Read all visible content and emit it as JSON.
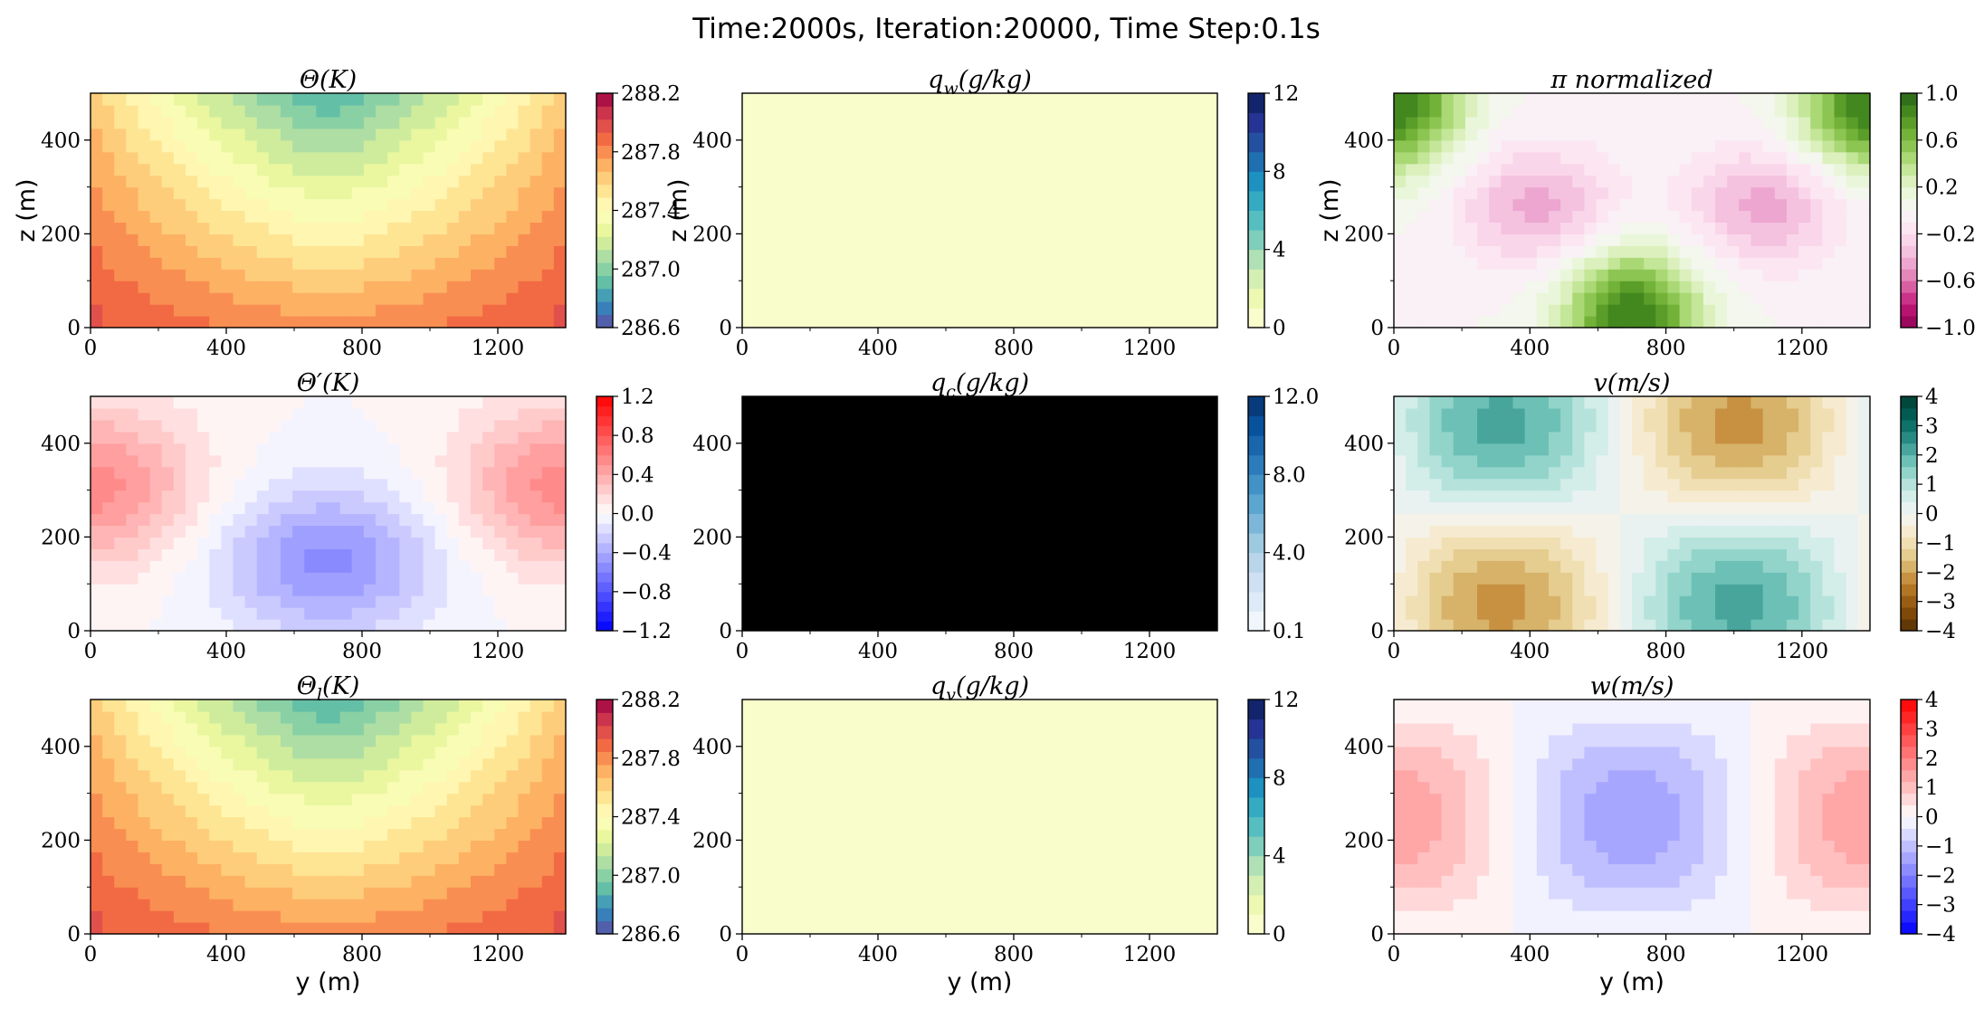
{
  "figure": {
    "suptitle": "Time:2000s, Iteration:20000, Time Step:0.1s",
    "xlabel": "y (m)",
    "ylabel": "z (m)"
  },
  "chart_data": [
    {
      "type": "heatmap",
      "id": "theta",
      "title": "Θ(K)",
      "field": "theta",
      "colormap": "Spectral_r",
      "x_range": [
        0,
        1400
      ],
      "y_range": [
        0,
        500
      ],
      "x_ticks": [
        0,
        400,
        800,
        1200
      ],
      "y_ticks": [
        0,
        200,
        400
      ],
      "clim": [
        286.6,
        288.2
      ],
      "levels": 18,
      "cbar_ticks": [
        "288.2",
        "287.8",
        "287.4",
        "287.0",
        "286.6"
      ],
      "ylabel": "z (m)",
      "xlabel": ""
    },
    {
      "type": "heatmap",
      "id": "qw",
      "title": "q_w(g/kg)",
      "field": "zero",
      "colormap": "YlGnBu",
      "x_range": [
        0,
        1400
      ],
      "y_range": [
        0,
        500
      ],
      "x_ticks": [
        0,
        400,
        800,
        1200
      ],
      "y_ticks": [
        0,
        200,
        400
      ],
      "clim": [
        0,
        12
      ],
      "levels": 12,
      "cbar_ticks": [
        "12",
        "8",
        "4",
        "0"
      ],
      "ylabel": "z (m)",
      "xlabel": ""
    },
    {
      "type": "heatmap",
      "id": "pi",
      "title": "π normalized",
      "field": "pi",
      "colormap": "PiYG",
      "x_range": [
        0,
        1400
      ],
      "y_range": [
        0,
        500
      ],
      "x_ticks": [
        0,
        400,
        800,
        1200
      ],
      "y_ticks": [
        0,
        200,
        400
      ],
      "clim": [
        -1,
        1
      ],
      "levels": 20,
      "cbar_ticks": [
        "1.0",
        "0.6",
        "0.2",
        "−0.2",
        "−0.6",
        "−1.0"
      ],
      "ylabel": "z (m)",
      "xlabel": ""
    },
    {
      "type": "heatmap",
      "id": "thetap",
      "title": "Θ′(K)",
      "field": "thetap",
      "colormap": "bwr",
      "x_range": [
        0,
        1400
      ],
      "y_range": [
        0,
        500
      ],
      "x_ticks": [
        0,
        400,
        800,
        1200
      ],
      "y_ticks": [
        0,
        200,
        400
      ],
      "clim": [
        -1.2,
        1.2
      ],
      "levels": 24,
      "cbar_ticks": [
        "1.2",
        "0.8",
        "0.4",
        "0.0",
        "−0.4",
        "−0.8",
        "−1.2"
      ],
      "ylabel": "",
      "xlabel": ""
    },
    {
      "type": "heatmap",
      "id": "qc",
      "title": "q_c(g/kg)",
      "field": "black",
      "colormap": "Blues",
      "x_range": [
        0,
        1400
      ],
      "y_range": [
        0,
        500
      ],
      "x_ticks": [
        0,
        400,
        800,
        1200
      ],
      "y_ticks": [
        0,
        200,
        400
      ],
      "clim": [
        0.1,
        12.0
      ],
      "levels": 12,
      "cbar_ticks": [
        "12.0",
        "8.0",
        "4.0",
        "0.1"
      ],
      "ylabel": "",
      "xlabel": ""
    },
    {
      "type": "heatmap",
      "id": "v",
      "title": "v(m/s)",
      "field": "v",
      "colormap": "BrBG",
      "x_range": [
        0,
        1400
      ],
      "y_range": [
        0,
        500
      ],
      "x_ticks": [
        0,
        400,
        800,
        1200
      ],
      "y_ticks": [
        0,
        200,
        400
      ],
      "clim": [
        -4,
        4
      ],
      "levels": 20,
      "cbar_ticks": [
        "4",
        "3",
        "2",
        "1",
        "0",
        "−1",
        "−2",
        "−3",
        "−4"
      ],
      "ylabel": "",
      "xlabel": ""
    },
    {
      "type": "heatmap",
      "id": "thetal",
      "title": "Θ_l(K)",
      "field": "theta",
      "colormap": "Spectral_r",
      "x_range": [
        0,
        1400
      ],
      "y_range": [
        0,
        500
      ],
      "x_ticks": [
        0,
        400,
        800,
        1200
      ],
      "y_ticks": [
        0,
        200,
        400
      ],
      "clim": [
        286.6,
        288.2
      ],
      "levels": 18,
      "cbar_ticks": [
        "288.2",
        "287.8",
        "287.4",
        "287.0",
        "286.6"
      ],
      "ylabel": "",
      "xlabel": "y (m)"
    },
    {
      "type": "heatmap",
      "id": "qv",
      "title": "q_v(g/kg)",
      "field": "zero",
      "colormap": "YlGnBu",
      "x_range": [
        0,
        1400
      ],
      "y_range": [
        0,
        500
      ],
      "x_ticks": [
        0,
        400,
        800,
        1200
      ],
      "y_ticks": [
        0,
        200,
        400
      ],
      "clim": [
        0,
        12
      ],
      "levels": 12,
      "cbar_ticks": [
        "12",
        "8",
        "4",
        "0"
      ],
      "ylabel": "",
      "xlabel": "y (m)"
    },
    {
      "type": "heatmap",
      "id": "w",
      "title": "w(m/s)",
      "field": "w",
      "colormap": "bwr",
      "x_range": [
        0,
        1400
      ],
      "y_range": [
        0,
        500
      ],
      "x_ticks": [
        0,
        400,
        800,
        1200
      ],
      "y_ticks": [
        0,
        200,
        400
      ],
      "clim": [
        -4,
        4
      ],
      "levels": 20,
      "cbar_ticks": [
        "4",
        "3",
        "2",
        "1",
        "0",
        "−1",
        "−2",
        "−3",
        "−4"
      ],
      "ylabel": "",
      "xlabel": "y (m)"
    }
  ]
}
